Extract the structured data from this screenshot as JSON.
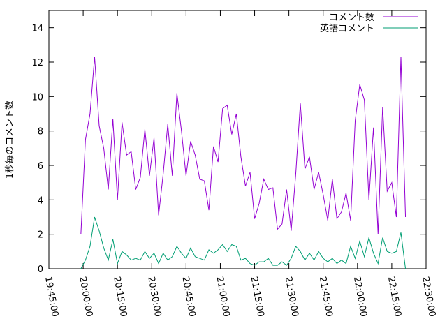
{
  "chart_data": {
    "type": "line",
    "ylabel": "1秒毎のコメント数",
    "x": [
      "19:59:00",
      "20:01:00",
      "20:03:00",
      "20:05:00",
      "20:07:00",
      "20:09:00",
      "20:11:00",
      "20:13:00",
      "20:15:00",
      "20:17:00",
      "20:19:00",
      "20:21:00",
      "20:23:00",
      "20:25:00",
      "20:27:00",
      "20:29:00",
      "20:31:00",
      "20:33:00",
      "20:35:00",
      "20:37:00",
      "20:39:00",
      "20:41:00",
      "20:43:00",
      "20:45:00",
      "20:47:00",
      "20:49:00",
      "20:51:00",
      "20:53:00",
      "20:55:00",
      "20:57:00",
      "20:59:00",
      "21:01:00",
      "21:03:00",
      "21:05:00",
      "21:07:00",
      "21:09:00",
      "21:11:00",
      "21:13:00",
      "21:15:00",
      "21:17:00",
      "21:19:00",
      "21:21:00",
      "21:23:00",
      "21:25:00",
      "21:27:00",
      "21:29:00",
      "21:31:00",
      "21:33:00",
      "21:35:00",
      "21:37:00",
      "21:39:00",
      "21:41:00",
      "21:43:00",
      "21:45:00",
      "21:47:00",
      "21:49:00",
      "21:51:00",
      "21:53:00",
      "21:55:00",
      "21:57:00",
      "21:59:00",
      "22:01:00",
      "22:03:00",
      "22:05:00",
      "22:07:00",
      "22:09:00",
      "22:11:00",
      "22:13:00",
      "22:15:00",
      "22:17:00",
      "22:19:00",
      "22:21:00"
    ],
    "series": [
      {
        "name": "コメント数",
        "color": "#9400d3",
        "values": [
          2.0,
          7.5,
          9.0,
          12.3,
          8.3,
          7.0,
          4.6,
          8.7,
          4.0,
          8.5,
          6.6,
          6.8,
          4.6,
          5.3,
          8.1,
          5.4,
          7.6,
          3.1,
          5.5,
          8.4,
          5.4,
          10.2,
          8.0,
          5.4,
          7.4,
          6.6,
          5.2,
          5.1,
          3.4,
          7.1,
          6.2,
          9.3,
          9.5,
          7.8,
          9.0,
          6.5,
          4.8,
          5.6,
          2.9,
          3.8,
          5.2,
          4.6,
          4.7,
          2.3,
          2.6,
          4.6,
          2.2,
          5.5,
          9.6,
          5.8,
          6.5,
          4.6,
          5.6,
          4.3,
          2.8,
          5.2,
          2.9,
          3.3,
          4.4,
          2.8,
          8.6,
          10.7,
          9.8,
          4.0,
          8.2,
          2.0,
          9.4,
          4.5,
          5.0,
          3.0,
          12.3,
          3.0
        ]
      },
      {
        "name": "英語コメント",
        "color": "#009e73",
        "values": [
          0.0,
          0.5,
          1.3,
          3.0,
          2.2,
          1.2,
          0.5,
          1.7,
          0.3,
          1.0,
          0.8,
          0.5,
          0.6,
          0.5,
          1.0,
          0.6,
          0.9,
          0.3,
          0.9,
          0.5,
          0.7,
          1.3,
          0.9,
          0.6,
          1.2,
          0.7,
          0.6,
          0.5,
          1.1,
          0.9,
          1.1,
          1.4,
          1.0,
          1.4,
          1.3,
          0.5,
          0.6,
          0.3,
          0.2,
          0.4,
          0.4,
          0.6,
          0.2,
          0.2,
          0.4,
          0.2,
          0.6,
          1.3,
          1.0,
          0.5,
          0.9,
          0.5,
          1.0,
          0.6,
          0.4,
          0.6,
          0.3,
          0.5,
          0.3,
          1.3,
          0.6,
          1.6,
          0.7,
          1.8,
          0.9,
          0.3,
          1.8,
          1.0,
          0.9,
          1.0,
          2.1,
          0.0
        ]
      }
    ],
    "xlim": [
      "19:45:00",
      "22:30:00"
    ],
    "xticks": [
      "19:45:00",
      "20:00:00",
      "20:15:00",
      "20:30:00",
      "20:45:00",
      "21:00:00",
      "21:15:00",
      "21:30:00",
      "21:45:00",
      "22:00:00",
      "22:15:00",
      "22:30:00"
    ],
    "ylim": [
      0,
      15
    ],
    "yticks": [
      0,
      2,
      4,
      6,
      8,
      10,
      12,
      14
    ],
    "legend": "top-right"
  }
}
